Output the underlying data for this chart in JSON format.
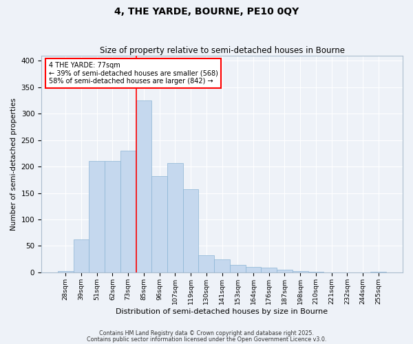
{
  "title": "4, THE YARDE, BOURNE, PE10 0QY",
  "subtitle": "Size of property relative to semi-detached houses in Bourne",
  "xlabel": "Distribution of semi-detached houses by size in Bourne",
  "ylabel": "Number of semi-detached properties",
  "categories": [
    "28sqm",
    "39sqm",
    "51sqm",
    "62sqm",
    "73sqm",
    "85sqm",
    "96sqm",
    "107sqm",
    "119sqm",
    "130sqm",
    "141sqm",
    "153sqm",
    "164sqm",
    "176sqm",
    "187sqm",
    "198sqm",
    "210sqm",
    "221sqm",
    "232sqm",
    "244sqm",
    "255sqm"
  ],
  "values": [
    2,
    62,
    210,
    210,
    230,
    325,
    182,
    207,
    157,
    33,
    25,
    14,
    10,
    9,
    5,
    2,
    1,
    0,
    0,
    0,
    1
  ],
  "bar_color": "#c5d8ee",
  "bar_edge_color": "#8ab4d4",
  "vline_x": 4.5,
  "property_label": "4 THE YARDE: 77sqm",
  "pct_smaller": 39,
  "n_smaller": 568,
  "pct_larger": 58,
  "n_larger": 842,
  "ylim": [
    0,
    410
  ],
  "yticks": [
    0,
    50,
    100,
    150,
    200,
    250,
    300,
    350,
    400
  ],
  "background_color": "#eef2f8",
  "grid_color": "#ffffff",
  "footer1": "Contains HM Land Registry data © Crown copyright and database right 2025.",
  "footer2": "Contains public sector information licensed under the Open Government Licence v3.0."
}
